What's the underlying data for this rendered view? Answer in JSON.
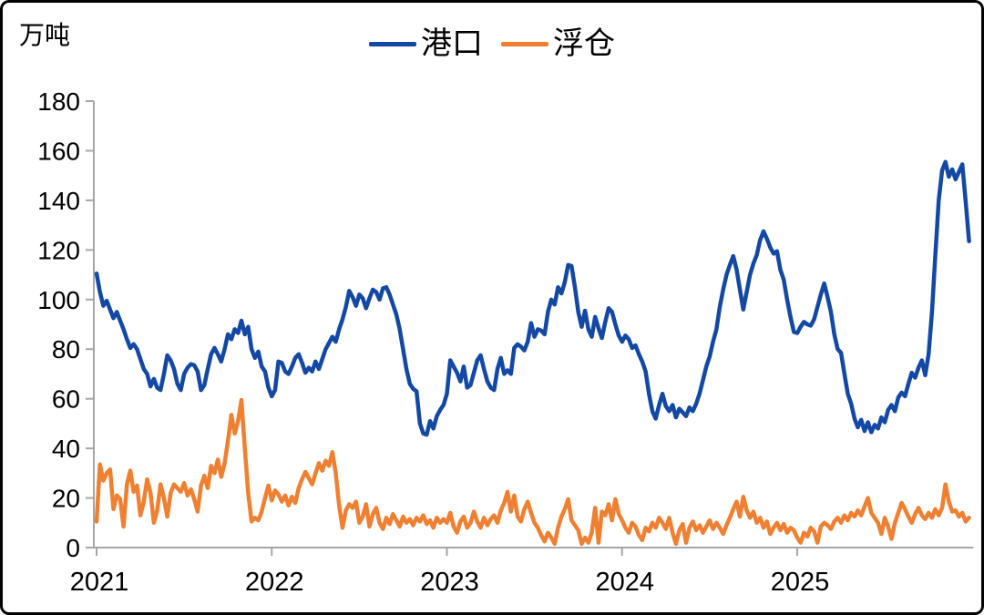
{
  "unit_label": "万吨",
  "legend": {
    "items": [
      {
        "label": "港口",
        "color": "#1348A5"
      },
      {
        "label": "浮仓",
        "color": "#EF8032"
      }
    ]
  },
  "chart_data": {
    "type": "line",
    "title": "",
    "ylabel": "万吨",
    "xlabel": "",
    "ylim": [
      0,
      180
    ],
    "ytick_step": 20,
    "ytick_labels": [
      "0",
      "20",
      "40",
      "60",
      "80",
      "100",
      "120",
      "140",
      "160",
      "180"
    ],
    "x_tick_labels": [
      "2021",
      "2022",
      "2023",
      "2024",
      "2025"
    ],
    "points_per_year": 52,
    "x_unit": "weekly",
    "grid": false,
    "legend_position": "top-center",
    "axis_color": "#A6A6A6",
    "background": "#FFFFFF",
    "series": [
      {
        "name": "港口",
        "color": "#1348A5",
        "values": [
          110.5,
          103,
          97.5,
          99.5,
          96,
          92.5,
          95,
          91.5,
          88,
          84,
          80.5,
          82,
          80,
          76,
          72,
          70,
          65,
          68,
          64.5,
          63.5,
          70,
          77.5,
          75.5,
          72,
          66,
          63.5,
          70,
          72.5,
          74,
          73.5,
          71,
          63.5,
          65.5,
          72,
          78,
          80.5,
          78,
          75,
          80,
          86,
          84,
          88,
          86.5,
          91.5,
          86,
          89,
          80,
          76.5,
          79,
          73,
          71,
          64.5,
          61,
          63.5,
          75,
          74.5,
          71,
          70,
          73,
          76.5,
          78,
          74.5,
          70.5,
          72.5,
          71,
          75,
          72,
          76,
          80,
          82.5,
          85,
          83,
          88,
          92,
          97,
          103.5,
          101,
          97.5,
          102,
          100.5,
          96.5,
          100.5,
          104,
          103,
          100,
          104.5,
          105,
          102,
          98,
          94,
          88,
          80,
          72,
          66,
          64,
          63,
          50,
          46,
          45.5,
          51,
          48,
          53,
          55.5,
          57.5,
          62,
          75.5,
          73,
          70.5,
          67,
          73,
          64.5,
          65.5,
          70.5,
          75.5,
          77.5,
          72,
          67,
          64.5,
          63.5,
          72,
          76.5,
          70,
          71.5,
          70,
          80.5,
          82,
          81,
          79.5,
          83,
          90.5,
          85,
          88,
          87.5,
          86,
          95,
          100,
          98,
          105,
          102.5,
          107,
          114,
          113.5,
          105,
          95,
          89,
          95.5,
          88,
          85,
          93,
          88.5,
          84.5,
          91,
          96.5,
          95,
          90,
          85.5,
          83,
          85.5,
          84,
          80.5,
          81.5,
          78,
          75,
          71,
          62,
          55,
          52,
          57.5,
          62,
          57,
          55,
          57.5,
          52.5,
          56,
          54.5,
          53,
          56.5,
          55,
          58,
          62,
          67.5,
          73,
          77,
          83,
          88,
          97,
          104,
          110,
          114,
          117.5,
          112,
          104,
          96,
          103,
          110,
          114.5,
          118,
          124,
          127.5,
          124.5,
          121,
          118.5,
          119.5,
          112,
          108,
          100,
          93,
          87,
          86.5,
          89,
          91,
          90,
          89.5,
          92,
          97,
          102,
          106.5,
          101,
          95,
          86,
          80,
          78.5,
          70,
          62,
          58,
          52,
          48.5,
          51.5,
          47,
          50.5,
          46.5,
          49.5,
          48,
          52.5,
          50.5,
          55.5,
          57.5,
          55,
          60.5,
          62.5,
          61,
          66,
          70.5,
          68.5,
          72.5,
          75.5,
          69.5,
          78,
          95,
          118,
          140,
          152,
          155.5,
          149.5,
          152.5,
          148.5,
          151.5,
          154.5,
          139.5,
          123.5
        ]
      },
      {
        "name": "浮仓",
        "color": "#EF8032",
        "values": [
          10.5,
          33.5,
          27,
          30,
          31.5,
          15.5,
          21,
          19.5,
          8.5,
          25.5,
          31,
          22.5,
          25,
          13,
          18.5,
          27.5,
          22,
          10,
          15,
          25.5,
          20,
          12.5,
          22,
          25.5,
          24,
          22.5,
          26,
          21,
          23.5,
          19.5,
          14.5,
          25,
          29,
          24,
          33,
          30,
          35.5,
          28.5,
          34,
          43,
          53.5,
          46,
          51,
          59.5,
          40,
          22,
          10.5,
          12,
          11,
          14.5,
          20,
          25,
          19,
          23,
          21.5,
          18.5,
          21,
          17,
          20.5,
          18,
          24,
          27.5,
          30.5,
          28,
          25.5,
          30,
          34,
          31,
          35,
          33,
          38.5,
          30,
          17,
          8,
          15,
          17.5,
          16,
          18.5,
          10,
          12.5,
          17.5,
          8.5,
          13.5,
          16,
          10,
          7.5,
          12,
          9.5,
          13.5,
          11,
          8.5,
          12.5,
          10,
          11.5,
          9,
          12,
          10.5,
          13,
          9.5,
          11,
          8,
          12,
          10,
          11.5,
          10,
          14,
          8.5,
          6,
          10.5,
          12.5,
          8,
          10,
          14.5,
          10.5,
          8,
          12,
          9,
          11.5,
          13,
          10,
          15,
          18,
          22.5,
          14.5,
          21,
          12.5,
          10.5,
          15.5,
          18.5,
          14,
          10,
          8,
          5,
          2.5,
          6,
          4,
          1.5,
          8,
          12.5,
          15.5,
          19.5,
          11,
          9,
          7,
          1.5,
          4,
          2,
          6,
          16,
          2,
          14.5,
          13,
          17.5,
          11,
          19.5,
          13.5,
          11,
          8,
          6,
          10,
          8.5,
          5,
          3,
          8,
          6.5,
          10,
          8,
          12,
          10,
          7.5,
          12,
          6,
          1.5,
          7,
          9.5,
          2,
          8,
          10.5,
          7,
          9,
          6,
          8.5,
          11,
          7.5,
          10,
          8,
          5.5,
          9,
          12,
          15.5,
          18.5,
          12.5,
          20.5,
          15,
          12,
          14.5,
          10,
          12,
          8,
          10.5,
          5.5,
          8,
          10,
          7,
          9.5,
          6,
          8,
          7,
          4,
          2,
          6,
          4.5,
          8,
          6.5,
          2,
          8.5,
          10,
          9,
          7.5,
          10.5,
          12,
          10,
          13,
          11,
          14,
          12.5,
          15,
          13,
          16.5,
          20,
          14,
          12,
          10,
          5.5,
          12,
          8.5,
          3.5,
          10,
          14,
          18,
          15.5,
          12.5,
          10,
          13.5,
          16,
          13,
          11.5,
          14,
          12,
          15.5,
          13,
          16,
          25.5,
          18.5,
          14.5,
          15,
          12.5,
          14,
          10.5,
          12
        ]
      }
    ]
  }
}
